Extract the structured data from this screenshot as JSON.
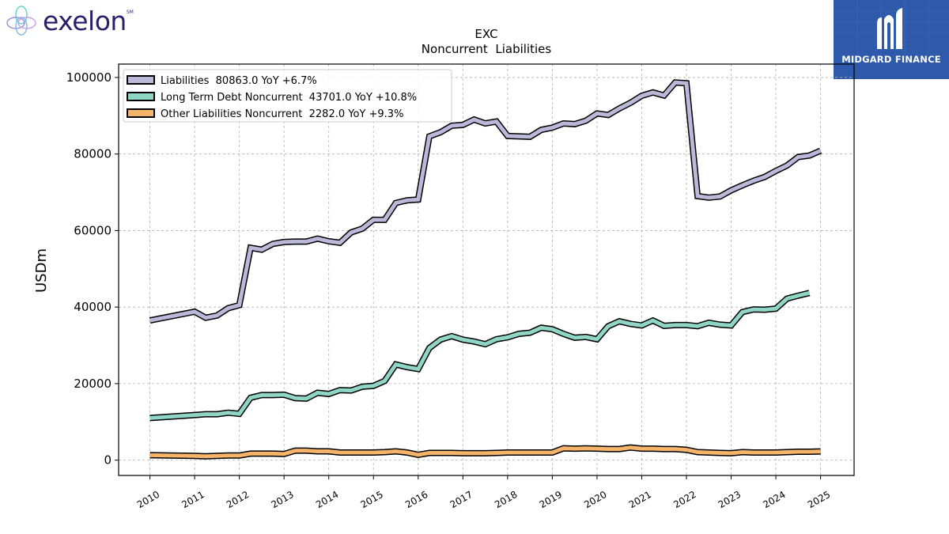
{
  "brand_left": {
    "name": "exelon",
    "mark": "SM",
    "icon": "exelon-flower-icon",
    "text_color": "#2b1e6b"
  },
  "brand_right": {
    "name": "MIDGARD FINANCE",
    "icon": "midgard-m-icon",
    "bg_color": "#2f5aab"
  },
  "chart_data": {
    "type": "line",
    "title": "EXC",
    "subtitle": "Noncurrent  Liabilities",
    "xlabel": "",
    "ylabel": "USDm",
    "xlim": [
      2009.3,
      2025.75
    ],
    "ylim": [
      -4000,
      103500
    ],
    "yticks": [
      0,
      20000,
      40000,
      60000,
      80000,
      100000
    ],
    "xticks": [
      "2010",
      "2011",
      "2012",
      "2013",
      "2014",
      "2015",
      "2016",
      "2017",
      "2018",
      "2019",
      "2020",
      "2021",
      "2022",
      "2023",
      "2024",
      "2025"
    ],
    "grid": true,
    "legend_position": "top-left",
    "series": [
      {
        "name": "Liabilities  80863.0 YoY +6.7%",
        "color": "#bcb8d9",
        "x": [
          2010.0,
          2011.0,
          2011.25,
          2011.5,
          2011.75,
          2012.0,
          2012.25,
          2012.5,
          2012.75,
          2013.0,
          2013.25,
          2013.5,
          2013.75,
          2014.0,
          2014.25,
          2014.5,
          2014.75,
          2015.0,
          2015.25,
          2015.5,
          2015.75,
          2016.0,
          2016.25,
          2016.5,
          2016.75,
          2017.0,
          2017.25,
          2017.5,
          2017.75,
          2018.0,
          2018.25,
          2018.5,
          2018.75,
          2019.0,
          2019.25,
          2019.5,
          2019.75,
          2020.0,
          2020.25,
          2020.5,
          2020.75,
          2021.0,
          2021.25,
          2021.5,
          2021.75,
          2022.0,
          2022.25,
          2022.5,
          2022.75,
          2023.0,
          2023.25,
          2023.5,
          2023.75,
          2024.0,
          2024.25,
          2024.5,
          2024.75,
          2025.0
        ],
        "values": [
          36500,
          38800,
          37200,
          37800,
          39700,
          40500,
          55500,
          55000,
          56500,
          57000,
          57100,
          57100,
          57900,
          57200,
          56800,
          59500,
          60500,
          62800,
          62800,
          67200,
          67900,
          68100,
          84600,
          85700,
          87400,
          87600,
          89000,
          88000,
          88500,
          84700,
          84600,
          84500,
          86300,
          86900,
          88000,
          87800,
          88700,
          90600,
          90200,
          91900,
          93400,
          95200,
          96100,
          95300,
          98700,
          98500,
          69000,
          68600,
          68900,
          70500,
          71800,
          73000,
          74000,
          75600,
          77000,
          79200,
          79600,
          80863
        ]
      },
      {
        "name": "Long Term Debt Noncurrent  43701.0 YoY +10.8%",
        "color": "#8fd6c6",
        "x": [
          2010.0,
          2011.0,
          2011.25,
          2011.5,
          2011.75,
          2012.0,
          2012.25,
          2012.5,
          2012.75,
          2013.0,
          2013.25,
          2013.5,
          2013.75,
          2014.0,
          2014.25,
          2014.5,
          2014.75,
          2015.0,
          2015.25,
          2015.5,
          2015.75,
          2016.0,
          2016.25,
          2016.5,
          2016.75,
          2017.0,
          2017.25,
          2017.5,
          2017.75,
          2018.0,
          2018.25,
          2018.5,
          2018.75,
          2019.0,
          2019.25,
          2019.5,
          2019.75,
          2020.0,
          2020.25,
          2020.5,
          2020.75,
          2021.0,
          2021.25,
          2021.5,
          2021.75,
          2022.0,
          2022.25,
          2022.5,
          2022.75,
          2023.0,
          2023.25,
          2023.5,
          2023.75,
          2024.0,
          2024.25,
          2024.5,
          2024.75
        ],
        "values": [
          11000,
          11800,
          12000,
          12000,
          12400,
          12100,
          16300,
          17000,
          17000,
          17100,
          16200,
          16100,
          17600,
          17300,
          18300,
          18200,
          19200,
          19400,
          20700,
          25000,
          24300,
          23800,
          29300,
          31500,
          32400,
          31500,
          31000,
          30300,
          31600,
          32100,
          33000,
          33300,
          34600,
          34200,
          33000,
          32000,
          32200,
          31600,
          35000,
          36300,
          35600,
          35200,
          36500,
          35100,
          35300,
          35300,
          35000,
          35900,
          35400,
          35200,
          38700,
          39400,
          39300,
          39600,
          42200,
          43000,
          43701
        ]
      },
      {
        "name": "Other Liabilities Noncurrent  2282.0 YoY +9.3%",
        "color": "#f5b46a",
        "x": [
          2010.0,
          2011.0,
          2011.25,
          2011.5,
          2011.75,
          2012.0,
          2012.25,
          2012.5,
          2012.75,
          2013.0,
          2013.25,
          2013.5,
          2013.75,
          2014.0,
          2014.25,
          2014.5,
          2014.75,
          2015.0,
          2015.25,
          2015.5,
          2015.75,
          2016.0,
          2016.25,
          2016.5,
          2016.75,
          2017.0,
          2017.25,
          2017.5,
          2017.75,
          2018.0,
          2018.25,
          2018.5,
          2018.75,
          2019.0,
          2019.25,
          2019.5,
          2019.75,
          2020.0,
          2020.25,
          2020.5,
          2020.75,
          2021.0,
          2021.25,
          2021.5,
          2021.75,
          2022.0,
          2022.25,
          2022.5,
          2022.75,
          2023.0,
          2023.25,
          2023.5,
          2023.75,
          2024.0,
          2024.25,
          2024.5,
          2024.75,
          2025.0
        ],
        "values": [
          1300,
          1100,
          1000,
          1100,
          1200,
          1200,
          1700,
          1700,
          1700,
          1600,
          2500,
          2500,
          2300,
          2300,
          2000,
          2000,
          2000,
          2000,
          2100,
          2300,
          2000,
          1400,
          1900,
          1900,
          1900,
          1800,
          1800,
          1800,
          1900,
          2000,
          2000,
          2000,
          2000,
          2000,
          3100,
          3000,
          3100,
          3000,
          2900,
          2900,
          3300,
          3000,
          3000,
          2900,
          2900,
          2700,
          2100,
          2000,
          1900,
          1800,
          2100,
          2000,
          2000,
          2000,
          2100,
          2200,
          2200,
          2282
        ]
      }
    ]
  }
}
